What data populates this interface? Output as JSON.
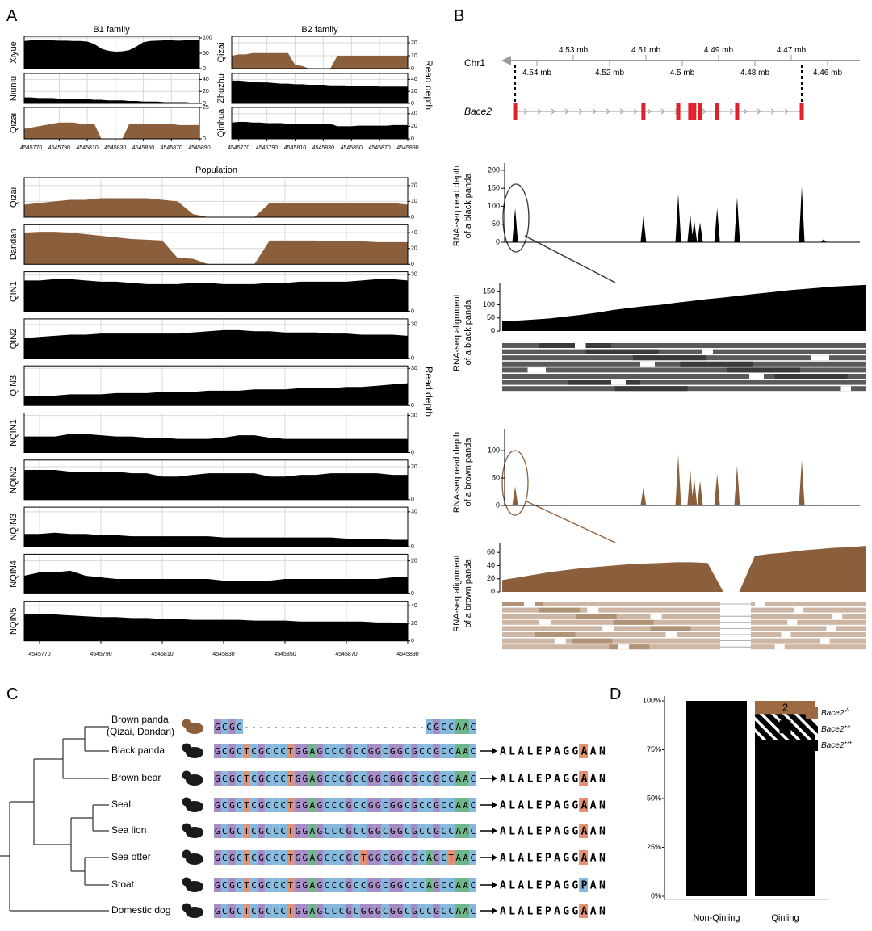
{
  "panel_a": {
    "label": "A",
    "x": [
      4545765,
      4545770,
      4545775,
      4545780,
      4545785,
      4545790,
      4545795,
      4545800,
      4545805,
      4545810,
      4545815,
      4545820,
      4545825,
      4545830,
      4545835,
      4545840,
      4545845,
      4545850,
      4545855,
      4545860,
      4545865,
      4545870,
      4545875,
      4545880,
      4545885,
      4545890
    ],
    "xlim": [
      4545765,
      4545890
    ],
    "xticks": [
      4545770,
      4545790,
      4545810,
      4545830,
      4545850,
      4545870,
      4545890
    ],
    "ylabel": "Read depth",
    "b1": {
      "title": "B1 family",
      "tracks": [
        {
          "name": "Xiyue",
          "color": "#000000",
          "ylim": [
            0,
            105
          ],
          "yticks": [
            0,
            50,
            100
          ],
          "values": [
            90,
            92,
            93,
            92,
            92,
            91,
            91,
            90,
            90,
            88,
            80,
            65,
            58,
            55,
            56,
            60,
            72,
            86,
            90,
            91,
            92,
            92,
            91,
            92,
            92,
            92
          ]
        },
        {
          "name": "Niuniu",
          "color": "#000000",
          "ylim": [
            0,
            50
          ],
          "yticks": [
            0,
            20,
            40
          ],
          "values": [
            10,
            10,
            9,
            9,
            9,
            8,
            8,
            8,
            7,
            7,
            6,
            6,
            5,
            5,
            5,
            4,
            4,
            3,
            3,
            3,
            2,
            2,
            2,
            2,
            1,
            1
          ]
        },
        {
          "name": "Qizai",
          "color": "#8b5e3c",
          "ylim": [
            0,
            25
          ],
          "yticks": [
            0,
            25
          ],
          "values": [
            8,
            9,
            10,
            11,
            12,
            13,
            13,
            13,
            12,
            12,
            12,
            0,
            0,
            0,
            0,
            12,
            12,
            12,
            12,
            12,
            12,
            12,
            11,
            11,
            11,
            11
          ]
        }
      ]
    },
    "b2": {
      "title": "B2 family",
      "tracks": [
        {
          "name": "Qizai",
          "color": "#8b5e3c",
          "ylim": [
            0,
            25
          ],
          "yticks": [
            0,
            10,
            20
          ],
          "values": [
            10,
            11,
            11,
            12,
            12,
            12,
            12,
            12,
            12,
            3,
            2,
            0,
            0,
            0,
            0,
            10,
            10,
            10,
            10,
            10,
            10,
            10,
            10,
            10,
            10,
            10
          ]
        },
        {
          "name": "Zhuzhu",
          "color": "#000000",
          "ylim": [
            0,
            50
          ],
          "yticks": [
            0,
            20,
            40
          ],
          "values": [
            38,
            38,
            37,
            36,
            35,
            35,
            34,
            33,
            33,
            32,
            32,
            31,
            31,
            31,
            30,
            30,
            30,
            29,
            29,
            29,
            29,
            28,
            28,
            28,
            28,
            28
          ]
        },
        {
          "name": "Qinhua",
          "color": "#000000",
          "ylim": [
            0,
            50
          ],
          "yticks": [
            0,
            20,
            40
          ],
          "values": [
            26,
            27,
            27,
            26,
            26,
            25,
            25,
            25,
            24,
            24,
            24,
            24,
            24,
            24,
            24,
            20,
            20,
            20,
            21,
            21,
            21,
            21,
            21,
            22,
            22,
            22
          ]
        }
      ]
    },
    "population": {
      "title": "Population",
      "tracks": [
        {
          "name": "Qizai",
          "color": "#8b5e3c",
          "ylim": [
            0,
            25
          ],
          "yticks": [
            0,
            10,
            20
          ],
          "values": [
            8,
            9,
            10,
            11,
            11,
            12,
            12,
            12,
            12,
            11,
            10,
            2,
            0,
            0,
            0,
            0,
            9,
            9,
            9,
            9,
            9,
            9,
            9,
            9,
            9,
            8
          ]
        },
        {
          "name": "Dandan",
          "color": "#8b5e3c",
          "ylim": [
            0,
            50
          ],
          "yticks": [
            0,
            20,
            40
          ],
          "values": [
            40,
            41,
            41,
            40,
            38,
            36,
            34,
            32,
            31,
            30,
            8,
            7,
            0,
            0,
            0,
            0,
            30,
            30,
            30,
            30,
            29,
            29,
            29,
            28,
            28,
            28
          ]
        },
        {
          "name": "QIN1",
          "color": "#000000",
          "ylim": [
            0,
            32
          ],
          "yticks": [
            0,
            30
          ],
          "values": [
            25,
            25,
            26,
            26,
            25,
            24,
            24,
            23,
            22,
            22,
            22,
            23,
            23,
            22,
            22,
            22,
            23,
            23,
            24,
            24,
            24,
            24,
            25,
            26,
            26,
            25
          ]
        },
        {
          "name": "QIN2",
          "color": "#000000",
          "ylim": [
            0,
            35
          ],
          "yticks": [
            0,
            30
          ],
          "values": [
            18,
            19,
            20,
            21,
            21,
            22,
            22,
            22,
            22,
            22,
            22,
            23,
            24,
            25,
            25,
            24,
            24,
            23,
            23,
            23,
            22,
            22,
            21,
            21,
            21,
            20
          ]
        },
        {
          "name": "QIN3",
          "color": "#000000",
          "ylim": [
            0,
            32
          ],
          "yticks": [
            0,
            30
          ],
          "values": [
            8,
            8,
            8,
            9,
            9,
            9,
            10,
            10,
            10,
            11,
            11,
            11,
            12,
            12,
            12,
            13,
            13,
            13,
            14,
            14,
            14,
            15,
            15,
            16,
            17,
            18
          ]
        },
        {
          "name": "NQIN1",
          "color": "#000000",
          "ylim": [
            0,
            32
          ],
          "yticks": [
            0,
            30
          ],
          "values": [
            13,
            13,
            13,
            15,
            15,
            14,
            13,
            13,
            12,
            12,
            11,
            11,
            11,
            12,
            14,
            14,
            12,
            11,
            11,
            11,
            11,
            11,
            11,
            11,
            11,
            11
          ]
        },
        {
          "name": "NQIN2",
          "color": "#000000",
          "ylim": [
            0,
            24
          ],
          "yticks": [
            0,
            20
          ],
          "values": [
            18,
            18,
            18,
            17,
            17,
            17,
            17,
            16,
            16,
            14,
            14,
            15,
            16,
            16,
            16,
            16,
            14,
            14,
            15,
            15,
            16,
            16,
            16,
            16,
            15,
            15
          ]
        },
        {
          "name": "NQIN3",
          "color": "#000000",
          "ylim": [
            0,
            34
          ],
          "yticks": [
            0,
            30
          ],
          "values": [
            11,
            11,
            12,
            11,
            11,
            10,
            10,
            9,
            9,
            9,
            9,
            9,
            9,
            8,
            8,
            8,
            8,
            8,
            8,
            8,
            8,
            7,
            7,
            7,
            6,
            6
          ]
        },
        {
          "name": "NQIN4",
          "color": "#000000",
          "ylim": [
            0,
            24
          ],
          "yticks": [
            0,
            20
          ],
          "values": [
            11,
            13,
            13,
            14,
            11,
            10,
            9,
            9,
            9,
            9,
            9,
            9,
            9,
            8,
            8,
            8,
            8,
            9,
            9,
            9,
            9,
            9,
            9,
            9,
            10,
            10
          ]
        },
        {
          "name": "NQIN5",
          "color": "#000000",
          "ylim": [
            0,
            45
          ],
          "yticks": [
            0,
            20,
            40
          ],
          "values": [
            30,
            31,
            30,
            29,
            28,
            27,
            27,
            26,
            26,
            25,
            25,
            24,
            24,
            24,
            24,
            23,
            23,
            23,
            22,
            22,
            22,
            22,
            22,
            21,
            21,
            20
          ]
        }
      ]
    }
  },
  "panel_b": {
    "label": "B",
    "chromosome": "Chr1",
    "xlim": [
      4.5489,
      4.4511
    ],
    "xticks_top": [
      {
        "value": 4.53,
        "label": "4.53 mb"
      },
      {
        "value": 4.51,
        "label": "4.51 mb"
      },
      {
        "value": 4.49,
        "label": "4.49 mb"
      },
      {
        "value": 4.47,
        "label": "4.47 mb"
      }
    ],
    "xticks_bottom": [
      {
        "value": 4.54,
        "label": "4.54 mb"
      },
      {
        "value": 4.52,
        "label": "4.52 mb"
      },
      {
        "value": 4.5,
        "label": "4.5 mb"
      },
      {
        "value": 4.48,
        "label": "4.48 mb"
      },
      {
        "value": 4.46,
        "label": "4.46 mb"
      }
    ],
    "gene": {
      "name": "Bace2",
      "color": "#e0202a",
      "exons": [
        4.546,
        4.5107,
        4.5011,
        4.4978,
        4.4967,
        4.4951,
        4.4904,
        4.4849,
        4.4671
      ]
    },
    "depth_black": {
      "ylabel": [
        "RNA-seq read depth",
        "of a black panda"
      ],
      "color": "#000000",
      "ylim": [
        0,
        220
      ],
      "yticks": [
        0,
        50,
        100,
        150,
        200
      ],
      "x": [
        4.546,
        4.5107,
        4.5011,
        4.4978,
        4.4967,
        4.4951,
        4.4904,
        4.4849,
        4.4671,
        4.4611
      ],
      "values": [
        95,
        72,
        135,
        80,
        60,
        55,
        95,
        125,
        155,
        8
      ]
    },
    "align_black": {
      "ylabel": [
        "RNA-seq  alignment",
        "of a black panda"
      ],
      "color": "#000000",
      "ylim": [
        0,
        185
      ],
      "yticks": [
        0,
        50,
        100,
        150
      ],
      "values": [
        38,
        40,
        44,
        48,
        55,
        62,
        70,
        80,
        88,
        95,
        100,
        108,
        115,
        122,
        128,
        135,
        142,
        148,
        155,
        160,
        165,
        170,
        173,
        176
      ]
    },
    "depth_brown": {
      "ylabel": [
        "RNA-seq read depth",
        "of a brown panda"
      ],
      "color": "#8b5e3c",
      "ylim": [
        0,
        140
      ],
      "yticks": [
        0,
        50,
        100
      ],
      "x": [
        4.546,
        4.5107,
        4.5011,
        4.4978,
        4.4967,
        4.4951,
        4.4904,
        4.4849,
        4.4671,
        4.4611
      ],
      "values": [
        35,
        33,
        93,
        68,
        50,
        45,
        58,
        73,
        83,
        2
      ]
    },
    "align_brown": {
      "ylabel": [
        "RNA-seq  alignment",
        "of a brown panda"
      ],
      "color": "#8b5e3c",
      "ylim": [
        0,
        75
      ],
      "yticks": [
        0,
        20,
        40,
        60
      ],
      "values": [
        18,
        22,
        26,
        30,
        33,
        36,
        38,
        40,
        42,
        43,
        44,
        45,
        45,
        44,
        0,
        0,
        55,
        58,
        60,
        63,
        65,
        67,
        68,
        70
      ]
    }
  },
  "panel_c": {
    "label": "C",
    "base_colors": {
      "A": "#6fb58a",
      "C": "#86b9de",
      "G": "#a48cc4",
      "T": "#e39273"
    },
    "highlight_colors": {
      "A": "#e39273",
      "P": "#86b9de"
    },
    "species": [
      {
        "name": "Brown panda",
        "note": "(Qizai, Dandan)",
        "color": "#8b5e3c",
        "sequence": "GCGC-------------------------CGCCAAC"
      },
      {
        "name": "Black panda",
        "color": "#000000",
        "sequence": "GCGCTCGCCCTGGAGCCCGCCGGCGGCGCCGCCAAC",
        "protein": "ALALEPAGGAAN",
        "highlight": 9
      },
      {
        "name": "Brown bear",
        "color": "#000000",
        "sequence": "GCGCTCGCCCTGGAGCCCGCCGGCGGCGCCGCCAAC",
        "protein": "ALALEPAGGAAN",
        "highlight": 9
      },
      {
        "name": "Seal",
        "color": "#000000",
        "sequence": "GCGCTCGCCCTGGAGCCCGCCGGCGGCGCCGCCAAC",
        "protein": "ALALEPAGGAAN",
        "highlight": 9
      },
      {
        "name": "Sea lion",
        "color": "#000000",
        "sequence": "GCGCTCGCCCTGGAGCCCGCCGGCGGCGCCGCCAAC",
        "protein": "ALALEPAGGAAN",
        "highlight": 9
      },
      {
        "name": "Sea otter",
        "color": "#000000",
        "sequence": "GCGCTCGCCCTGGAGCCCGCTGGCGGCGCAGCTAAC",
        "protein": "ALALEPAGGAAN",
        "highlight": 9
      },
      {
        "name": "Stoat",
        "color": "#000000",
        "sequence": "GCGCTCGCCCTGGAGCCCGCCGGCGGCCCAGCCAAC",
        "protein": "ALALEPAGGPAN",
        "highlight": 9
      },
      {
        "name": "Domestic dog",
        "color": "#000000",
        "sequence": "GCGCTCGCCCTGGAGCCCGCGGGCGGCGCCGCCAAC",
        "protein": "ALALEPAGGAAN",
        "highlight": 9
      }
    ]
  },
  "panel_d": {
    "label": "D",
    "type": "bar",
    "stack": "percent",
    "categories": [
      "Non-Qinling",
      "Qinling"
    ],
    "ylim": [
      0,
      100
    ],
    "yticks": [
      {
        "value": 0,
        "label": "0%"
      },
      {
        "value": 25,
        "label": "25%"
      },
      {
        "value": 50,
        "label": "50%"
      },
      {
        "value": 75,
        "label": "75%"
      },
      {
        "value": 100,
        "label": "100%"
      }
    ],
    "series": [
      {
        "name": "Bace2",
        "superscript": "+/+",
        "color": "#000000",
        "values": [
          194,
          24
        ]
      },
      {
        "name": "Bace2",
        "superscript": "+/-",
        "color": "#000000",
        "pattern": "hatch",
        "values": [
          0,
          4
        ]
      },
      {
        "name": "Bace2",
        "superscript": "-/-",
        "color": "#9c6b43",
        "values": [
          0,
          2
        ]
      }
    ]
  }
}
